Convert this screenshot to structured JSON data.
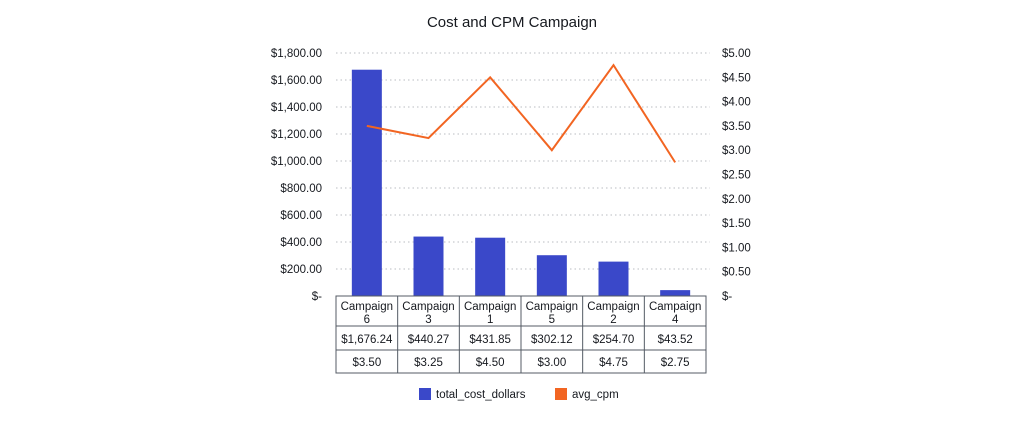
{
  "chart_data": {
    "type": "bar+line",
    "title": "Cost and CPM Campaign",
    "categories": [
      [
        "Campaign",
        "6"
      ],
      [
        "Campaign",
        "3"
      ],
      [
        "Campaign",
        "1"
      ],
      [
        "Campaign",
        "5"
      ],
      [
        "Campaign",
        "2"
      ],
      [
        "Campaign",
        "4"
      ]
    ],
    "series": [
      {
        "name": "total_cost_dollars",
        "type": "bar",
        "axis": "left",
        "color": "#3a48c9",
        "values": [
          1676.24,
          440.27,
          431.85,
          302.12,
          254.7,
          43.52
        ],
        "labels": [
          "$1,676.24",
          "$440.27",
          "$431.85",
          "$302.12",
          "$254.70",
          "$43.52"
        ]
      },
      {
        "name": "avg_cpm",
        "type": "line",
        "axis": "right",
        "color": "#f26522",
        "values": [
          3.5,
          3.25,
          4.5,
          3.0,
          4.75,
          2.75
        ],
        "labels": [
          "$3.50",
          "$3.25",
          "$4.50",
          "$3.00",
          "$4.75",
          "$2.75"
        ]
      }
    ],
    "left_axis": {
      "min": 0,
      "max": 1800,
      "step": 200,
      "tick_labels": [
        "$-",
        "$200.00",
        "$400.00",
        "$600.00",
        "$800.00",
        "$1,000.00",
        "$1,200.00",
        "$1,400.00",
        "$1,600.00",
        "$1,800.00"
      ]
    },
    "right_axis": {
      "min": 0,
      "max": 5,
      "step": 0.5,
      "tick_labels": [
        "$-",
        "$0.50",
        "$1.00",
        "$1.50",
        "$2.00",
        "$2.50",
        "$3.00",
        "$3.50",
        "$4.00",
        "$4.50",
        "$5.00"
      ]
    },
    "grid": true,
    "legend_position": "bottom",
    "data_table": true
  }
}
